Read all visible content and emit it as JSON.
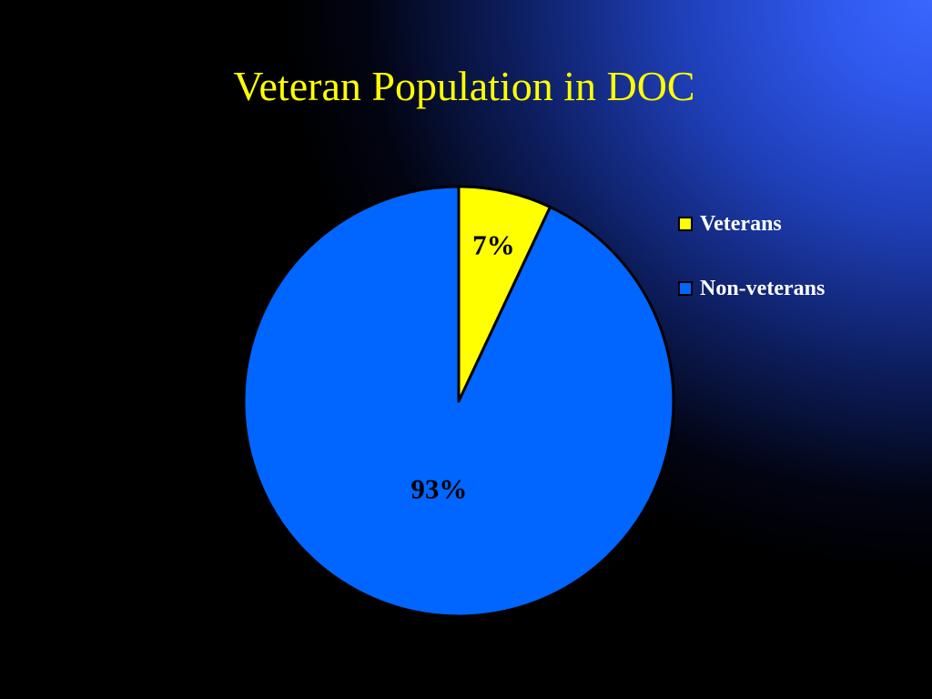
{
  "slide": {
    "title": "Veteran Population in DOC"
  },
  "chart_data": {
    "type": "pie",
    "title": "Veteran Population in DOC",
    "slices": [
      {
        "label": "Veterans",
        "value": 7,
        "display": "7%",
        "color": "#ffff00"
      },
      {
        "label": "Non-veterans",
        "value": 93,
        "display": "93%",
        "color": "#0066ff"
      }
    ],
    "legend_position": "right",
    "start_angle_deg": 0,
    "direction": "clockwise"
  },
  "legend": {
    "items": [
      {
        "label": "Veterans",
        "color": "#ffff00"
      },
      {
        "label": "Non-veterans",
        "color": "#0066ff"
      }
    ]
  }
}
